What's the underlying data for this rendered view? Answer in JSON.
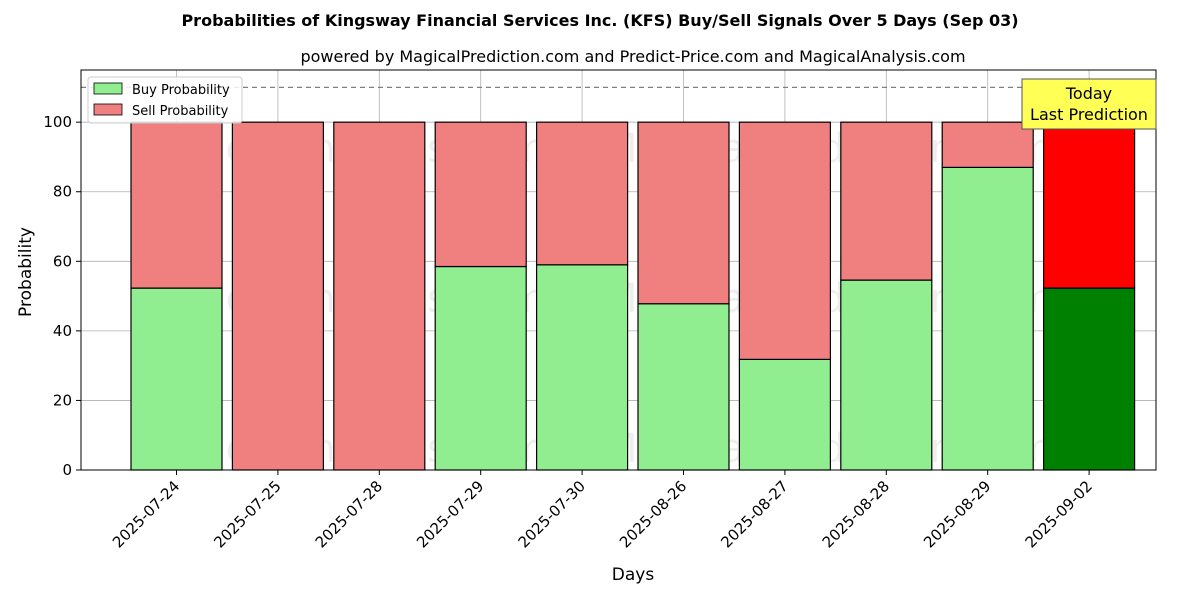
{
  "chart_data": {
    "type": "bar",
    "stacked": true,
    "title": "Probabilities of Kingsway Financial Services Inc. (KFS) Buy/Sell Signals Over 5 Days (Sep 03)",
    "subtitle": "powered by MagicalPrediction.com and Predict-Price.com and MagicalAnalysis.com",
    "xlabel": "Days",
    "ylabel": "Probability",
    "ylim": [
      0,
      115
    ],
    "yticks": [
      0,
      20,
      40,
      60,
      80,
      100
    ],
    "grid": true,
    "legend_position": "top-left",
    "reference_line": 110,
    "categories": [
      "2025-07-24",
      "2025-07-25",
      "2025-07-28",
      "2025-07-29",
      "2025-07-30",
      "2025-08-26",
      "2025-08-27",
      "2025-08-28",
      "2025-08-29",
      "2025-09-02"
    ],
    "series": [
      {
        "name": "Buy Probability",
        "color": "#90ee90",
        "values": [
          52.3,
          0,
          0,
          58.5,
          59.0,
          47.8,
          31.8,
          54.6,
          87.0,
          52.3
        ]
      },
      {
        "name": "Sell Probability",
        "color": "#f08080",
        "values": [
          47.7,
          100,
          100,
          41.5,
          41.0,
          52.2,
          68.2,
          45.4,
          13.0,
          47.7
        ]
      }
    ],
    "highlight": {
      "index": 9,
      "buy_color": "#008000",
      "sell_color": "#ff0000"
    },
    "annotation": {
      "lines": [
        "Today",
        "Last Prediction"
      ],
      "bg": "#ffff55"
    },
    "watermarks": [
      "MagicalAnalysis.com",
      "MagicalPrediction.com",
      "MagicalAnalysis.com",
      "MagicalPrediction.com",
      "MagicalAnalysis.com",
      "MagicalPrediction.com"
    ]
  }
}
